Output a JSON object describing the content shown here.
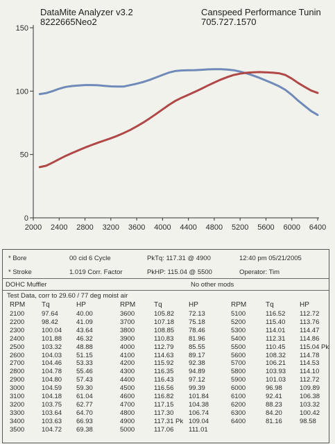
{
  "header": {
    "app_title": "DataMite Analyzer v3.2",
    "run_id": "8222665Neo2",
    "shop_name": "Canspeed Performance Tunin",
    "phone": "705.727.1570"
  },
  "chart_data": {
    "type": "line",
    "xlim": [
      2000,
      6400
    ],
    "ylim": [
      0,
      150
    ],
    "x_ticks": [
      "2000",
      "2400",
      "2800",
      "3200",
      "3600",
      "4000",
      "4400",
      "4800",
      "5200",
      "5600",
      "6000",
      "6400"
    ],
    "y_ticks": [
      "0",
      "50",
      "100",
      "150"
    ],
    "grid": false,
    "colors": {
      "torque": "#6f8ab8",
      "hp": "#b04848"
    },
    "series": [
      {
        "key": "torque",
        "x": [
          2100,
          2200,
          2300,
          2400,
          2500,
          2600,
          2700,
          2800,
          2900,
          3000,
          3100,
          3200,
          3300,
          3400,
          3500,
          3600,
          3700,
          3800,
          3900,
          4000,
          4100,
          4200,
          4300,
          4400,
          4500,
          4600,
          4700,
          4800,
          4900,
          5000,
          5100,
          5200,
          5300,
          5400,
          5500,
          5600,
          5700,
          5800,
          5900,
          6000,
          6100,
          6200,
          6300,
          6400
        ],
        "values": [
          97.64,
          98.42,
          100.04,
          101.88,
          103.32,
          104.03,
          104.46,
          104.78,
          104.8,
          104.59,
          104.18,
          103.75,
          103.64,
          103.64,
          104.72,
          105.82,
          107.18,
          108.85,
          110.83,
          112.79,
          114.63,
          115.92,
          116.35,
          116.43,
          116.56,
          116.82,
          117.15,
          117.3,
          117.31,
          117.06,
          116.52,
          115.4,
          114.01,
          112.31,
          110.45,
          108.32,
          106.21,
          103.93,
          101.03,
          96.98,
          92.41,
          88.23,
          84.2,
          81.16
        ]
      },
      {
        "key": "hp",
        "x": [
          2100,
          2200,
          2300,
          2400,
          2500,
          2600,
          2700,
          2800,
          2900,
          3000,
          3100,
          3200,
          3300,
          3400,
          3500,
          3600,
          3700,
          3800,
          3900,
          4000,
          4100,
          4200,
          4300,
          4400,
          4500,
          4600,
          4700,
          4800,
          4900,
          5000,
          5100,
          5200,
          5300,
          5400,
          5500,
          5600,
          5700,
          5800,
          5900,
          6000,
          6100,
          6200,
          6300,
          6400
        ],
        "values": [
          40.0,
          41.09,
          43.64,
          46.32,
          48.88,
          51.15,
          53.33,
          55.46,
          57.43,
          59.3,
          61.04,
          62.77,
          64.7,
          66.93,
          69.38,
          72.13,
          75.18,
          78.46,
          81.96,
          85.55,
          89.17,
          92.38,
          94.89,
          97.12,
          99.39,
          101.84,
          104.38,
          106.74,
          109.04,
          111.01,
          112.72,
          113.76,
          114.47,
          114.86,
          115.04,
          114.78,
          114.53,
          114.1,
          112.72,
          109.89,
          106.38,
          103.32,
          100.42,
          98.58
        ]
      }
    ]
  },
  "specs": {
    "bore_label": "* Bore",
    "stroke_label": "* Stroke",
    "engine": "00 cid  6 Cycle",
    "corr": "1.019 Corr. Factor",
    "pktq": "PkTq: 117.31 @  4900",
    "pkhp": "PkHP: 115.04 @  5500",
    "datetime": "12:40 pm  05/21/2005",
    "operator": "Operator: Tim",
    "note_left": "DOHC Muffler",
    "note_right": "No other mods",
    "test_line": "Test Data, corr to 29.60 / 77 deg moist air"
  },
  "table": {
    "headers": [
      "RPM",
      "Tq",
      "HP"
    ],
    "col1": [
      [
        "2100",
        "97.64",
        "40.00"
      ],
      [
        "2200",
        "98.42",
        "41.09"
      ],
      [
        "2300",
        "100.04",
        "43.64"
      ],
      [
        "2400",
        "101.88",
        "46.32"
      ],
      [
        "2500",
        "103.32",
        "48.88"
      ],
      [
        "2600",
        "104.03",
        "51.15"
      ],
      [
        "2700",
        "104.46",
        "53.33"
      ],
      [
        "2800",
        "104.78",
        "55.46"
      ],
      [
        "2900",
        "104.80",
        "57.43"
      ],
      [
        "3000",
        "104.59",
        "59.30"
      ],
      [
        "3100",
        "104.18",
        "61.04"
      ],
      [
        "3200",
        "103.75",
        "62.77"
      ],
      [
        "3300",
        "103.64",
        "64.70"
      ],
      [
        "3400",
        "103.63",
        "66.93"
      ],
      [
        "3500",
        "104.72",
        "69.38"
      ]
    ],
    "col2": [
      [
        "3600",
        "105.82",
        "72.13"
      ],
      [
        "3700",
        "107.18",
        "75.18"
      ],
      [
        "3800",
        "108.85",
        "78.46"
      ],
      [
        "3900",
        "110.83",
        "81.96"
      ],
      [
        "4000",
        "112.79",
        "85.55"
      ],
      [
        "4100",
        "114.63",
        "89.17"
      ],
      [
        "4200",
        "115.92",
        "92.38"
      ],
      [
        "4300",
        "116.35",
        "94.89"
      ],
      [
        "4400",
        "116.43",
        "97.12"
      ],
      [
        "4500",
        "116.56",
        "99.39"
      ],
      [
        "4600",
        "116.82",
        "101.84"
      ],
      [
        "4700",
        "117.15",
        "104.38"
      ],
      [
        "4800",
        "117.30",
        "106.74"
      ],
      [
        "4900",
        "117.31 Pk",
        "109.04"
      ],
      [
        "5000",
        "117.06",
        "111.01"
      ]
    ],
    "col3": [
      [
        "5100",
        "116.52",
        "112.72"
      ],
      [
        "5200",
        "115.40",
        "113.76"
      ],
      [
        "5300",
        "114.01",
        "114.47"
      ],
      [
        "5400",
        "112.31",
        "114.86"
      ],
      [
        "5500",
        "110.45",
        "115.04 Pk"
      ],
      [
        "5600",
        "108.32",
        "114.78"
      ],
      [
        "5700",
        "106.21",
        "114.53"
      ],
      [
        "5800",
        "103.93",
        "114.10"
      ],
      [
        "5900",
        "101.03",
        "112.72"
      ],
      [
        "6000",
        "96.98",
        "109.89"
      ],
      [
        "6100",
        "92.41",
        "106.38"
      ],
      [
        "6200",
        "88.23",
        "103.32"
      ],
      [
        "6300",
        "84.20",
        "100.42"
      ],
      [
        "6400",
        "81.16",
        "98.58"
      ]
    ]
  }
}
